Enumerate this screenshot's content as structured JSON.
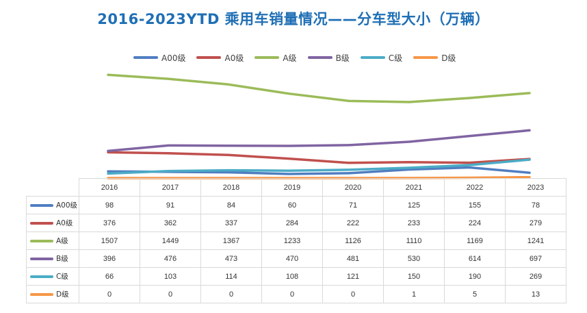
{
  "chart_data": {
    "type": "line",
    "title": "2016-2023YTD 乘用车销量情况——分车型大小（万辆）",
    "categories": [
      "2016",
      "2017",
      "2018",
      "2019",
      "2020",
      "2021",
      "2022",
      "2023"
    ],
    "series": [
      {
        "name": "A00级",
        "color": "#4f7ec1",
        "values": [
          98,
          91,
          84,
          60,
          71,
          125,
          155,
          78
        ]
      },
      {
        "name": "A0级",
        "color": "#c0504d",
        "values": [
          376,
          362,
          337,
          284,
          222,
          233,
          224,
          279
        ]
      },
      {
        "name": "A级",
        "color": "#9bbb59",
        "values": [
          1507,
          1449,
          1367,
          1233,
          1126,
          1110,
          1169,
          1241
        ]
      },
      {
        "name": "B级",
        "color": "#8064a2",
        "values": [
          396,
          476,
          473,
          470,
          481,
          530,
          614,
          697
        ]
      },
      {
        "name": "C级",
        "color": "#4bacc6",
        "values": [
          66,
          103,
          114,
          108,
          121,
          150,
          190,
          269
        ]
      },
      {
        "name": "D级",
        "color": "#f79646",
        "values": [
          0,
          0,
          0,
          0,
          0,
          1,
          5,
          13
        ]
      }
    ],
    "ylim": [
      0,
      1650
    ],
    "legend": "top",
    "grid": false,
    "data_table": true
  }
}
